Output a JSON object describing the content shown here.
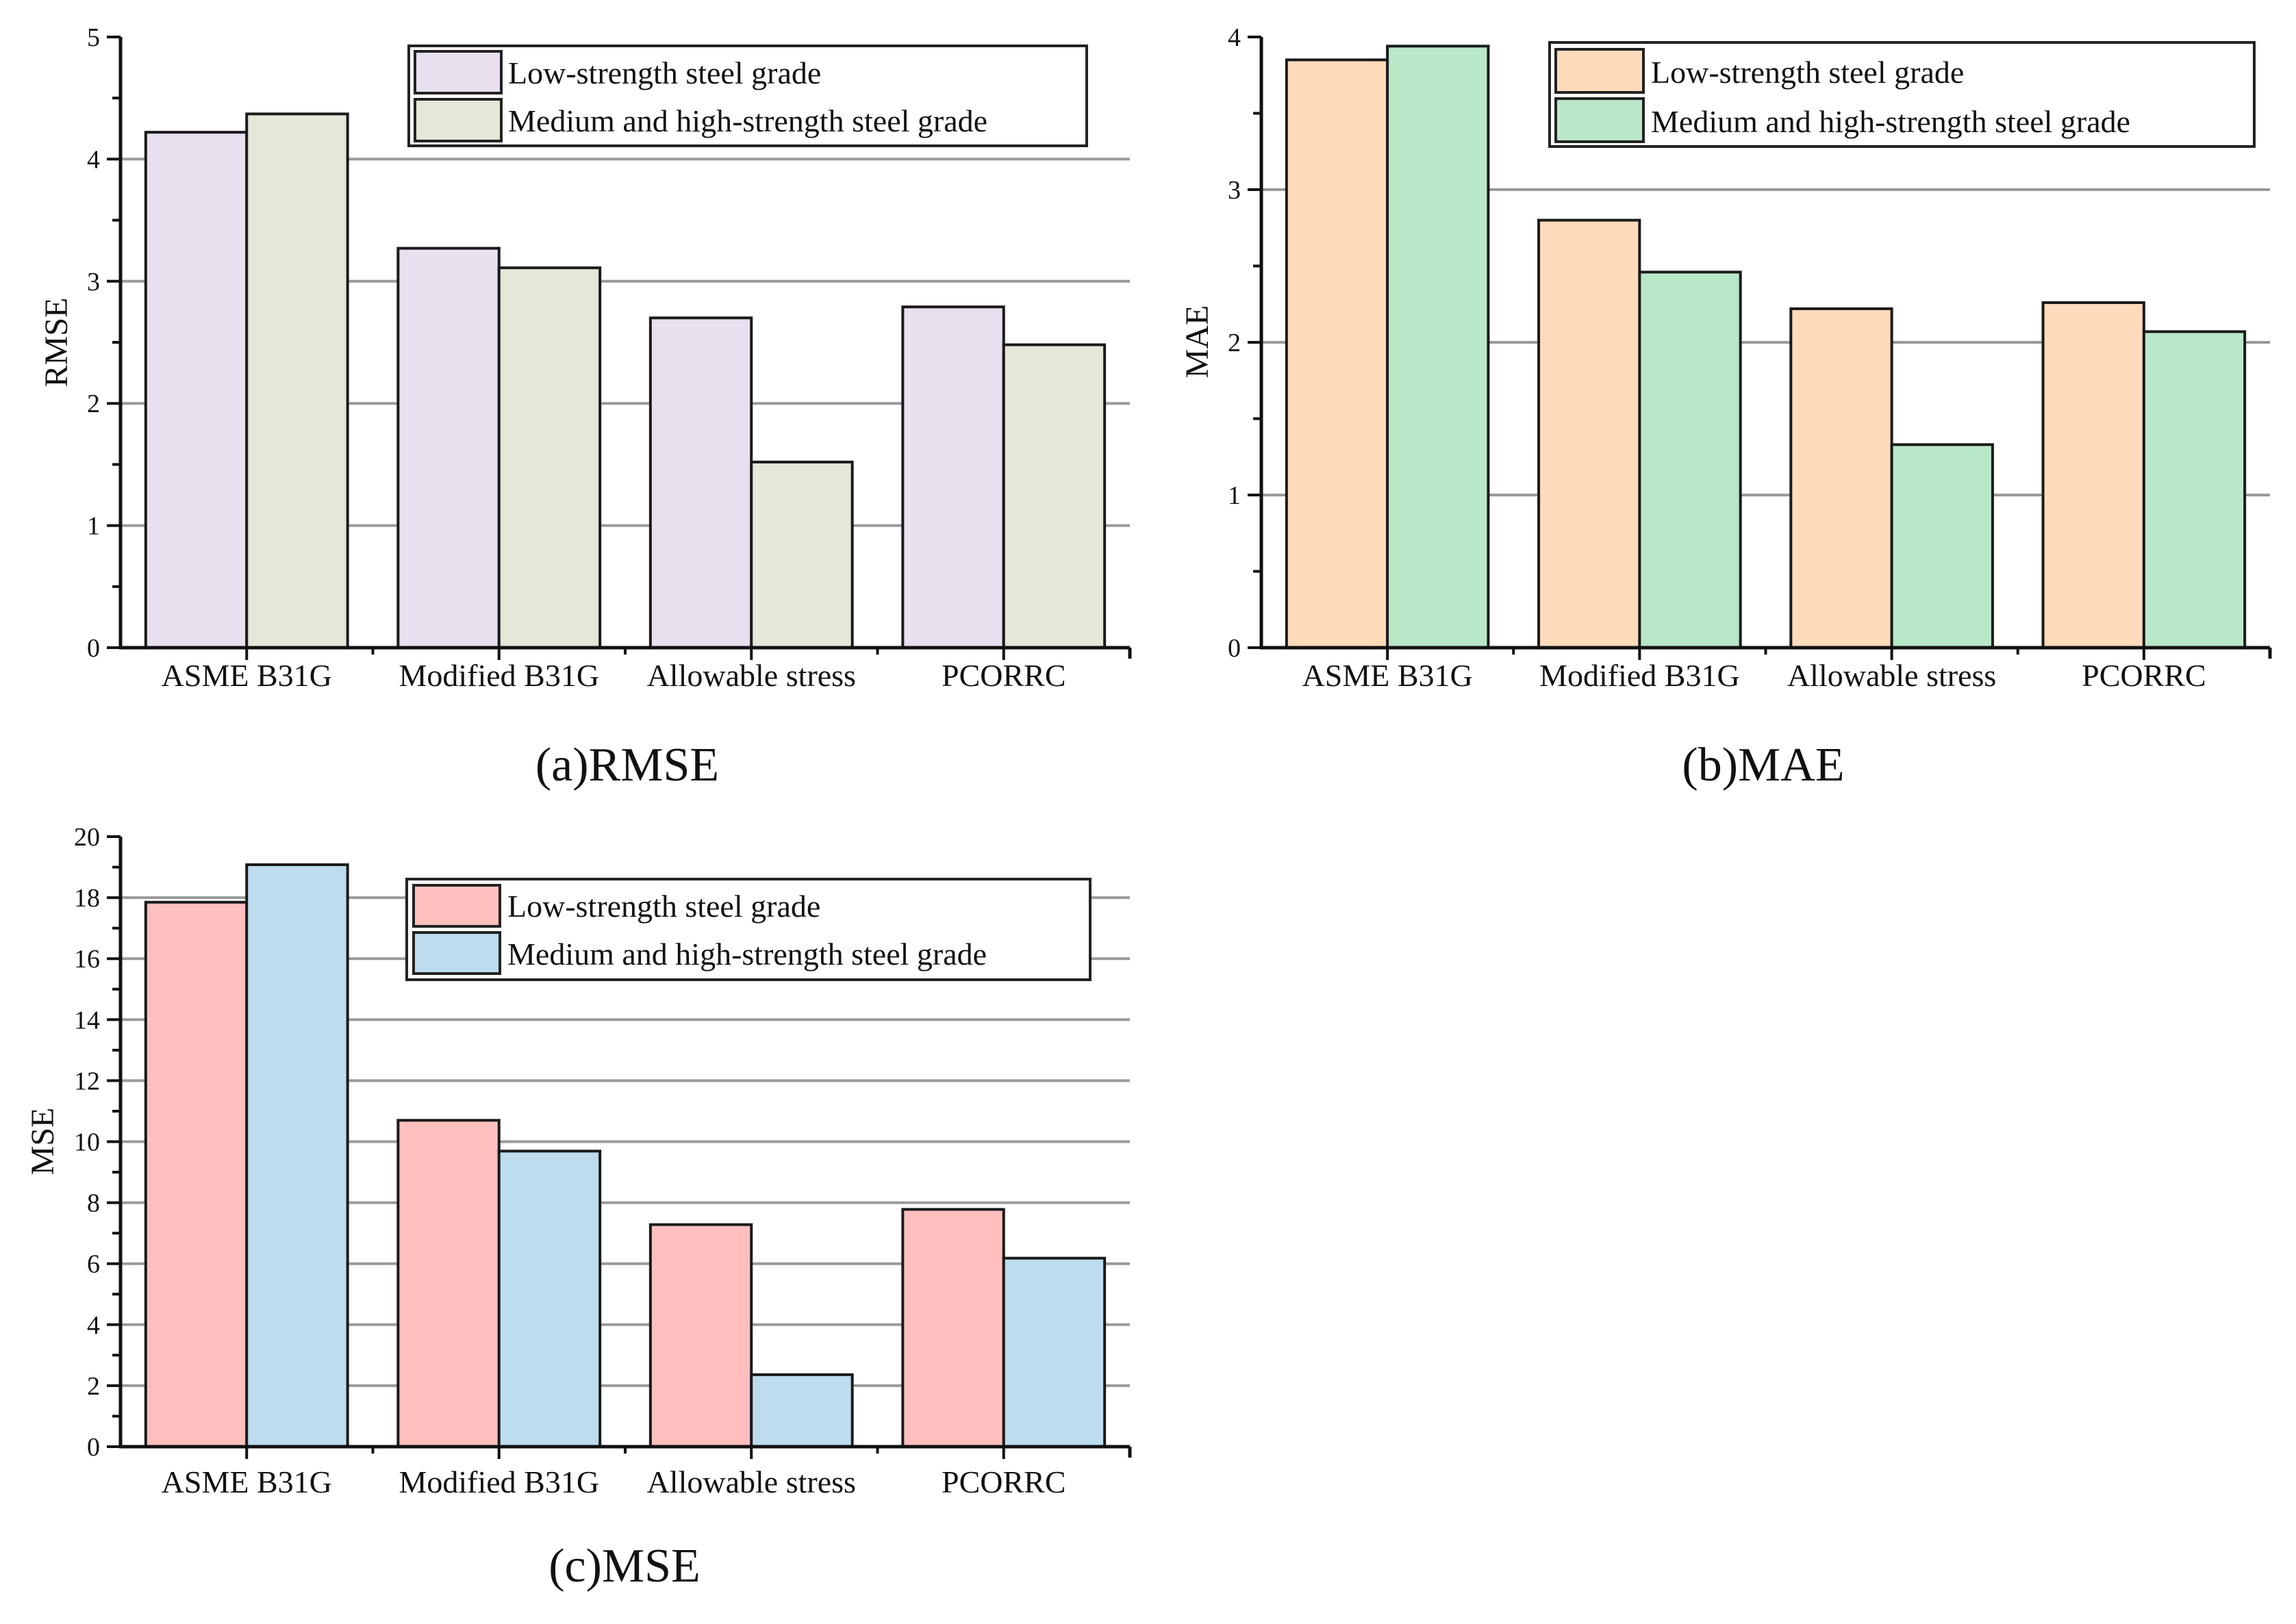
{
  "chart_data": [
    {
      "type": "bar",
      "panel": "a",
      "caption": "(a)RMSE",
      "title": "",
      "xlabel": "",
      "ylabel": "RMSE",
      "ylim": [
        0,
        5
      ],
      "yticks": [
        0,
        1,
        2,
        3,
        4,
        5
      ],
      "ytick_labels": [
        "0",
        "1",
        "2",
        "3",
        "4",
        "5"
      ],
      "grid": true,
      "legend_position": "top-right",
      "categories": [
        "ASME B31G",
        "Modified B31G",
        "Allowable stress",
        "PCORRC"
      ],
      "series": [
        {
          "name": "Low-strength steel grade",
          "color": "#E8DFEF",
          "values": [
            4.22,
            3.27,
            2.7,
            2.79
          ]
        },
        {
          "name": "Medium and high-strength steel grade",
          "color": "#E6E6D9",
          "values": [
            4.37,
            3.11,
            1.52,
            2.48
          ]
        }
      ]
    },
    {
      "type": "bar",
      "panel": "b",
      "caption": "(b)MAE",
      "title": "",
      "xlabel": "",
      "ylabel": "MAE",
      "ylim": [
        0,
        4
      ],
      "yticks": [
        0,
        1,
        2,
        3,
        4
      ],
      "ytick_labels": [
        "0",
        "1",
        "2",
        "3",
        "4"
      ],
      "grid": true,
      "legend_position": "top-right",
      "categories": [
        "ASME B31G",
        "Modified B31G",
        "Allowable stress",
        "PCORRC"
      ],
      "series": [
        {
          "name": "Low-strength steel grade",
          "color": "#FDDBBB",
          "values": [
            3.85,
            2.8,
            2.22,
            2.26
          ]
        },
        {
          "name": "Medium and high-strength steel grade",
          "color": "#B9E8C8",
          "values": [
            3.94,
            2.46,
            1.33,
            2.07
          ]
        }
      ]
    },
    {
      "type": "bar",
      "panel": "c",
      "caption": "(c)MSE",
      "title": "",
      "xlabel": "",
      "ylabel": "MSE",
      "ylim": [
        0,
        20
      ],
      "yticks": [
        0,
        2,
        4,
        6,
        8,
        10,
        12,
        14,
        16,
        18,
        20
      ],
      "ytick_labels": [
        "0",
        "2",
        "4",
        "6",
        "8",
        "10",
        "12",
        "14",
        "16",
        "18",
        "20"
      ],
      "grid": true,
      "legend_position": "top-right",
      "categories": [
        "ASME B31G",
        "Modified B31G",
        "Allowable stress",
        "PCORRC"
      ],
      "series": [
        {
          "name": "Low-strength steel grade",
          "color": "#FFBFBF",
          "values": [
            17.85,
            10.7,
            7.28,
            7.78
          ]
        },
        {
          "name": "Medium and high-strength steel grade",
          "color": "#BDDCEE",
          "values": [
            19.08,
            9.69,
            2.36,
            6.18
          ]
        }
      ]
    }
  ]
}
